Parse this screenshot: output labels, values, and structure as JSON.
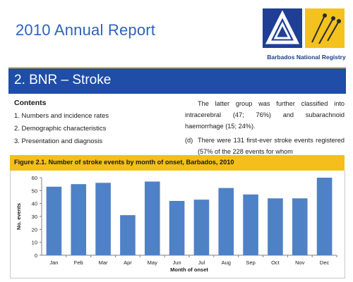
{
  "header": {
    "title": "2010 Annual Report",
    "logo_caption": "Barbados National Registry"
  },
  "section": {
    "title": "2. BNR – Stroke"
  },
  "contents": {
    "heading": "Contents",
    "items": [
      "1. Numbers and incidence rates",
      "2. Demographic characteristics",
      "3. Presentation and diagnosis"
    ]
  },
  "body_text": {
    "paragraph": "The latter group was further classified into intracerebral (47; 76%) and subarachnoid haemorrhage (15; 24%).",
    "item_d_label": "(d)",
    "item_d_text": "There were 131 first-ever stroke events registered (57% of the 228 events for whom"
  },
  "figure": {
    "caption": "Figure 2.1. Number of stroke events by month of onset, Barbados, 2010"
  },
  "colors": {
    "bar": "#4f81c6",
    "section_bar": "#1f4da8",
    "figure_bar": "#f5be1a",
    "title_blue": "#2e63b8"
  },
  "chart_data": {
    "type": "bar",
    "categories": [
      "Jan",
      "Feb",
      "Mar",
      "Apr",
      "May",
      "Jun",
      "Jul",
      "Aug",
      "Sep",
      "Oct",
      "Nov",
      "Dec"
    ],
    "values": [
      53,
      55,
      56,
      31,
      57,
      42,
      43,
      52,
      47,
      44,
      44,
      60
    ],
    "xlabel": "Month of onset",
    "ylabel": "No. events",
    "ylim": [
      0,
      60
    ],
    "yticks": [
      0,
      10,
      20,
      30,
      40,
      50,
      60
    ],
    "grid": false,
    "legend": "none"
  }
}
